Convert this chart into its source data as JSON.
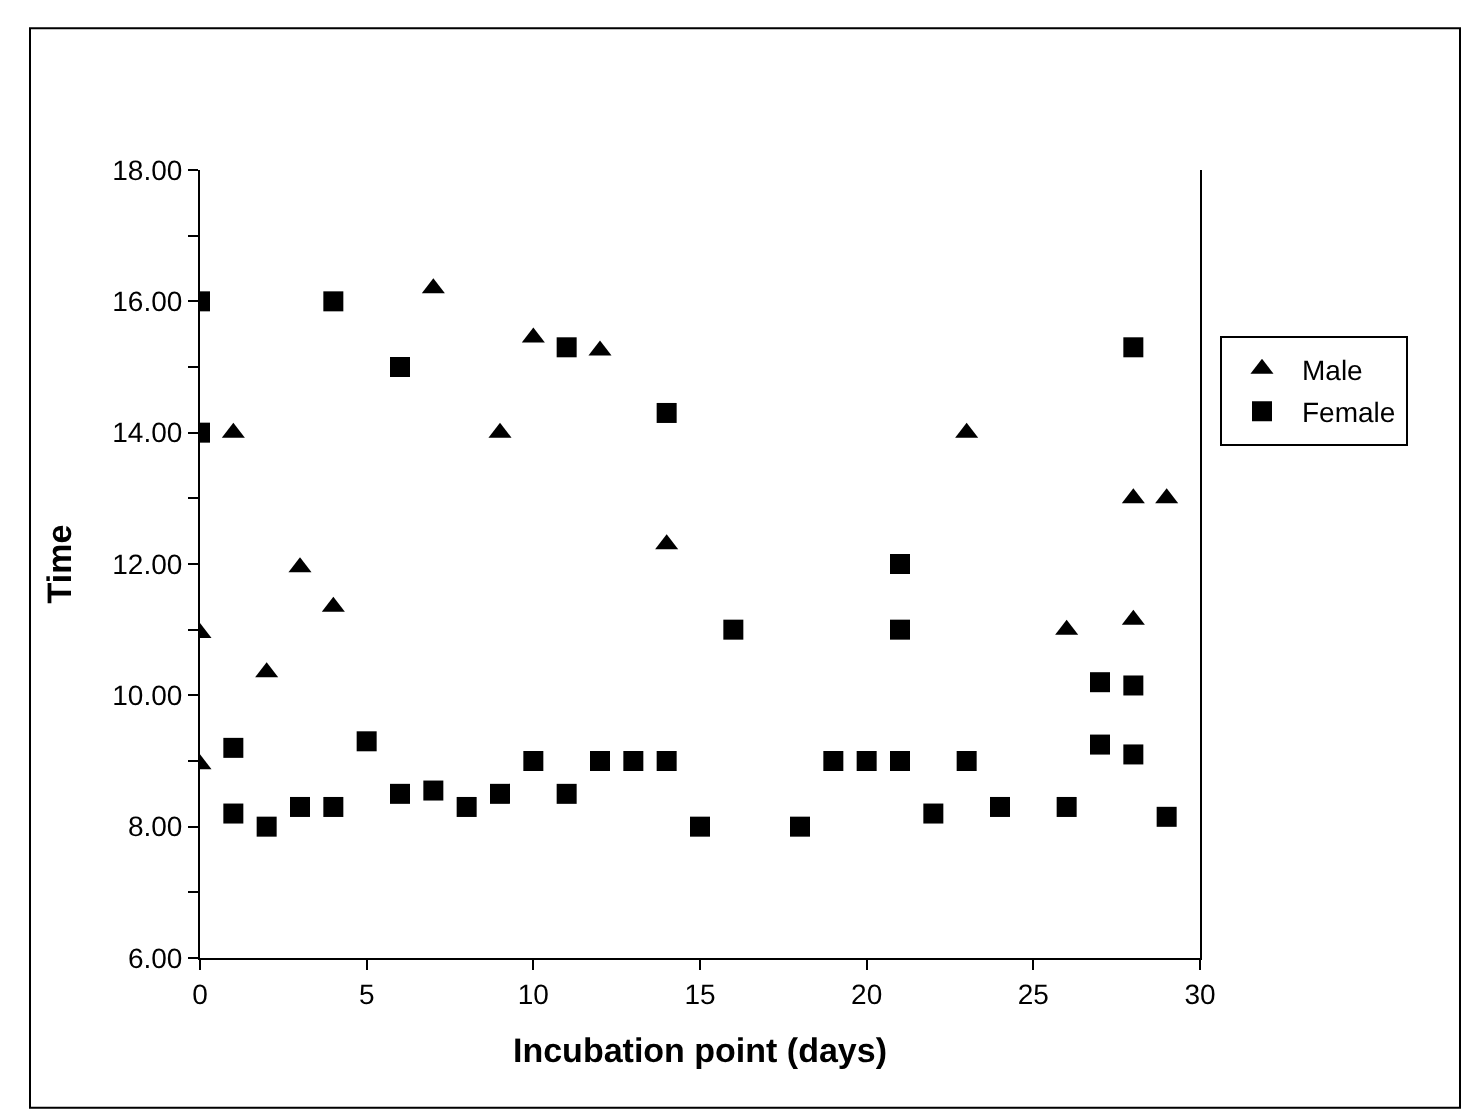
{
  "chart_data": {
    "type": "scatter",
    "xlabel": "Incubation point (days)",
    "ylabel": "Time",
    "xlim": [
      0,
      30
    ],
    "xticks": [
      0,
      5,
      10,
      15,
      20,
      25,
      30
    ],
    "ylim": [
      6,
      18
    ],
    "yticks": [
      {
        "value": 6,
        "label": "6.00"
      },
      {
        "value": 7,
        "label": null
      },
      {
        "value": 8,
        "label": "8.00"
      },
      {
        "value": 9,
        "label": null
      },
      {
        "value": 10,
        "label": "10.00"
      },
      {
        "value": 11,
        "label": null
      },
      {
        "value": 12,
        "label": "12.00"
      },
      {
        "value": 13,
        "label": null
      },
      {
        "value": 14,
        "label": "14.00"
      },
      {
        "value": 15,
        "label": null
      },
      {
        "value": 16,
        "label": "16.00"
      },
      {
        "value": 17,
        "label": null
      },
      {
        "value": 18,
        "label": "18.00"
      }
    ],
    "legend": "right",
    "series": [
      {
        "name": "Male",
        "color": "#000000",
        "marker": "triangle",
        "x": [
          0,
          0,
          1,
          2,
          3,
          4,
          7,
          9,
          10,
          12,
          14,
          23,
          26,
          28,
          28,
          29
        ],
        "values": [
          8.95,
          10.95,
          14,
          10.35,
          11.95,
          11.35,
          16.2,
          14,
          15.45,
          15.25,
          12.3,
          14,
          11,
          11.15,
          13,
          13
        ]
      },
      {
        "name": "Female",
        "color": "#000000",
        "marker": "square",
        "x": [
          0,
          0,
          1,
          1,
          2,
          3,
          4,
          4,
          5,
          6,
          6,
          7,
          8,
          9,
          10,
          11,
          11,
          12,
          13,
          14,
          14,
          15,
          16,
          18,
          19,
          20,
          21,
          21,
          21,
          22,
          23,
          24,
          26,
          27,
          27,
          28,
          28,
          28,
          29
        ],
        "values": [
          16,
          14,
          9.2,
          8.2,
          8,
          8.3,
          8.3,
          16,
          9.3,
          15,
          8.5,
          8.55,
          8.3,
          8.5,
          9,
          15.3,
          8.5,
          9,
          9,
          9,
          14.3,
          8,
          11,
          8,
          9,
          9,
          9,
          11,
          12,
          8.2,
          9,
          8.3,
          8.3,
          10.2,
          9.25,
          15.3,
          10.15,
          9.1,
          8.15
        ]
      }
    ]
  }
}
